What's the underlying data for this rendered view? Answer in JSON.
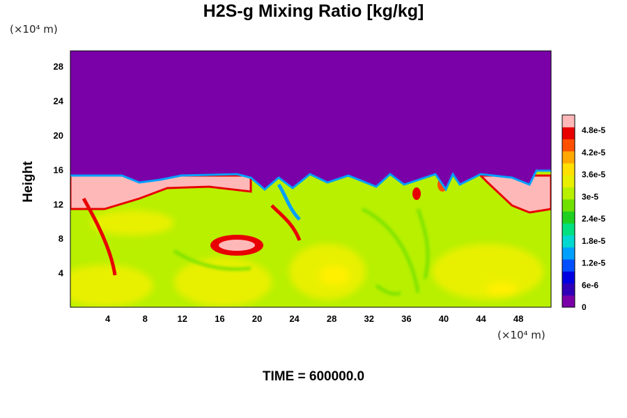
{
  "chart_data": {
    "type": "heatmap",
    "title": "H2S-g Mixing Ratio [kg/kg]",
    "ylabel": "Height",
    "xunit": "(×10⁴ m)",
    "yunit": "(×10⁴ m)",
    "xticks": [
      "4",
      "8",
      "12",
      "16",
      "20",
      "24",
      "28",
      "32",
      "36",
      "40",
      "44",
      "48"
    ],
    "yticks": [
      "4",
      "8",
      "12",
      "16",
      "20",
      "24",
      "28"
    ],
    "xlim": [
      0,
      51.5
    ],
    "ylim": [
      0,
      29.8
    ],
    "colorbar": {
      "labels": [
        "0",
        "6e-6",
        "1.2e-5",
        "1.8e-5",
        "2.4e-5",
        "3e-5",
        "3.6e-5",
        "4.2e-5",
        "4.8e-5"
      ],
      "range": [
        0,
        5.2e-05
      ],
      "colors": [
        "#7a00a8",
        "#3000b8",
        "#0000e0",
        "#0050ff",
        "#00a0ff",
        "#00d8d0",
        "#00e080",
        "#20d020",
        "#70e000",
        "#b8f000",
        "#e8f000",
        "#ffe000",
        "#ffa800",
        "#ff5000",
        "#e80000",
        "#ffb8b8"
      ]
    },
    "fields": {
      "upper_layer_value": 0,
      "lower_background_value": 3.2e-05,
      "pink_cap_value": 5.2e-05
    },
    "footer": "TIME = 600000.0"
  }
}
